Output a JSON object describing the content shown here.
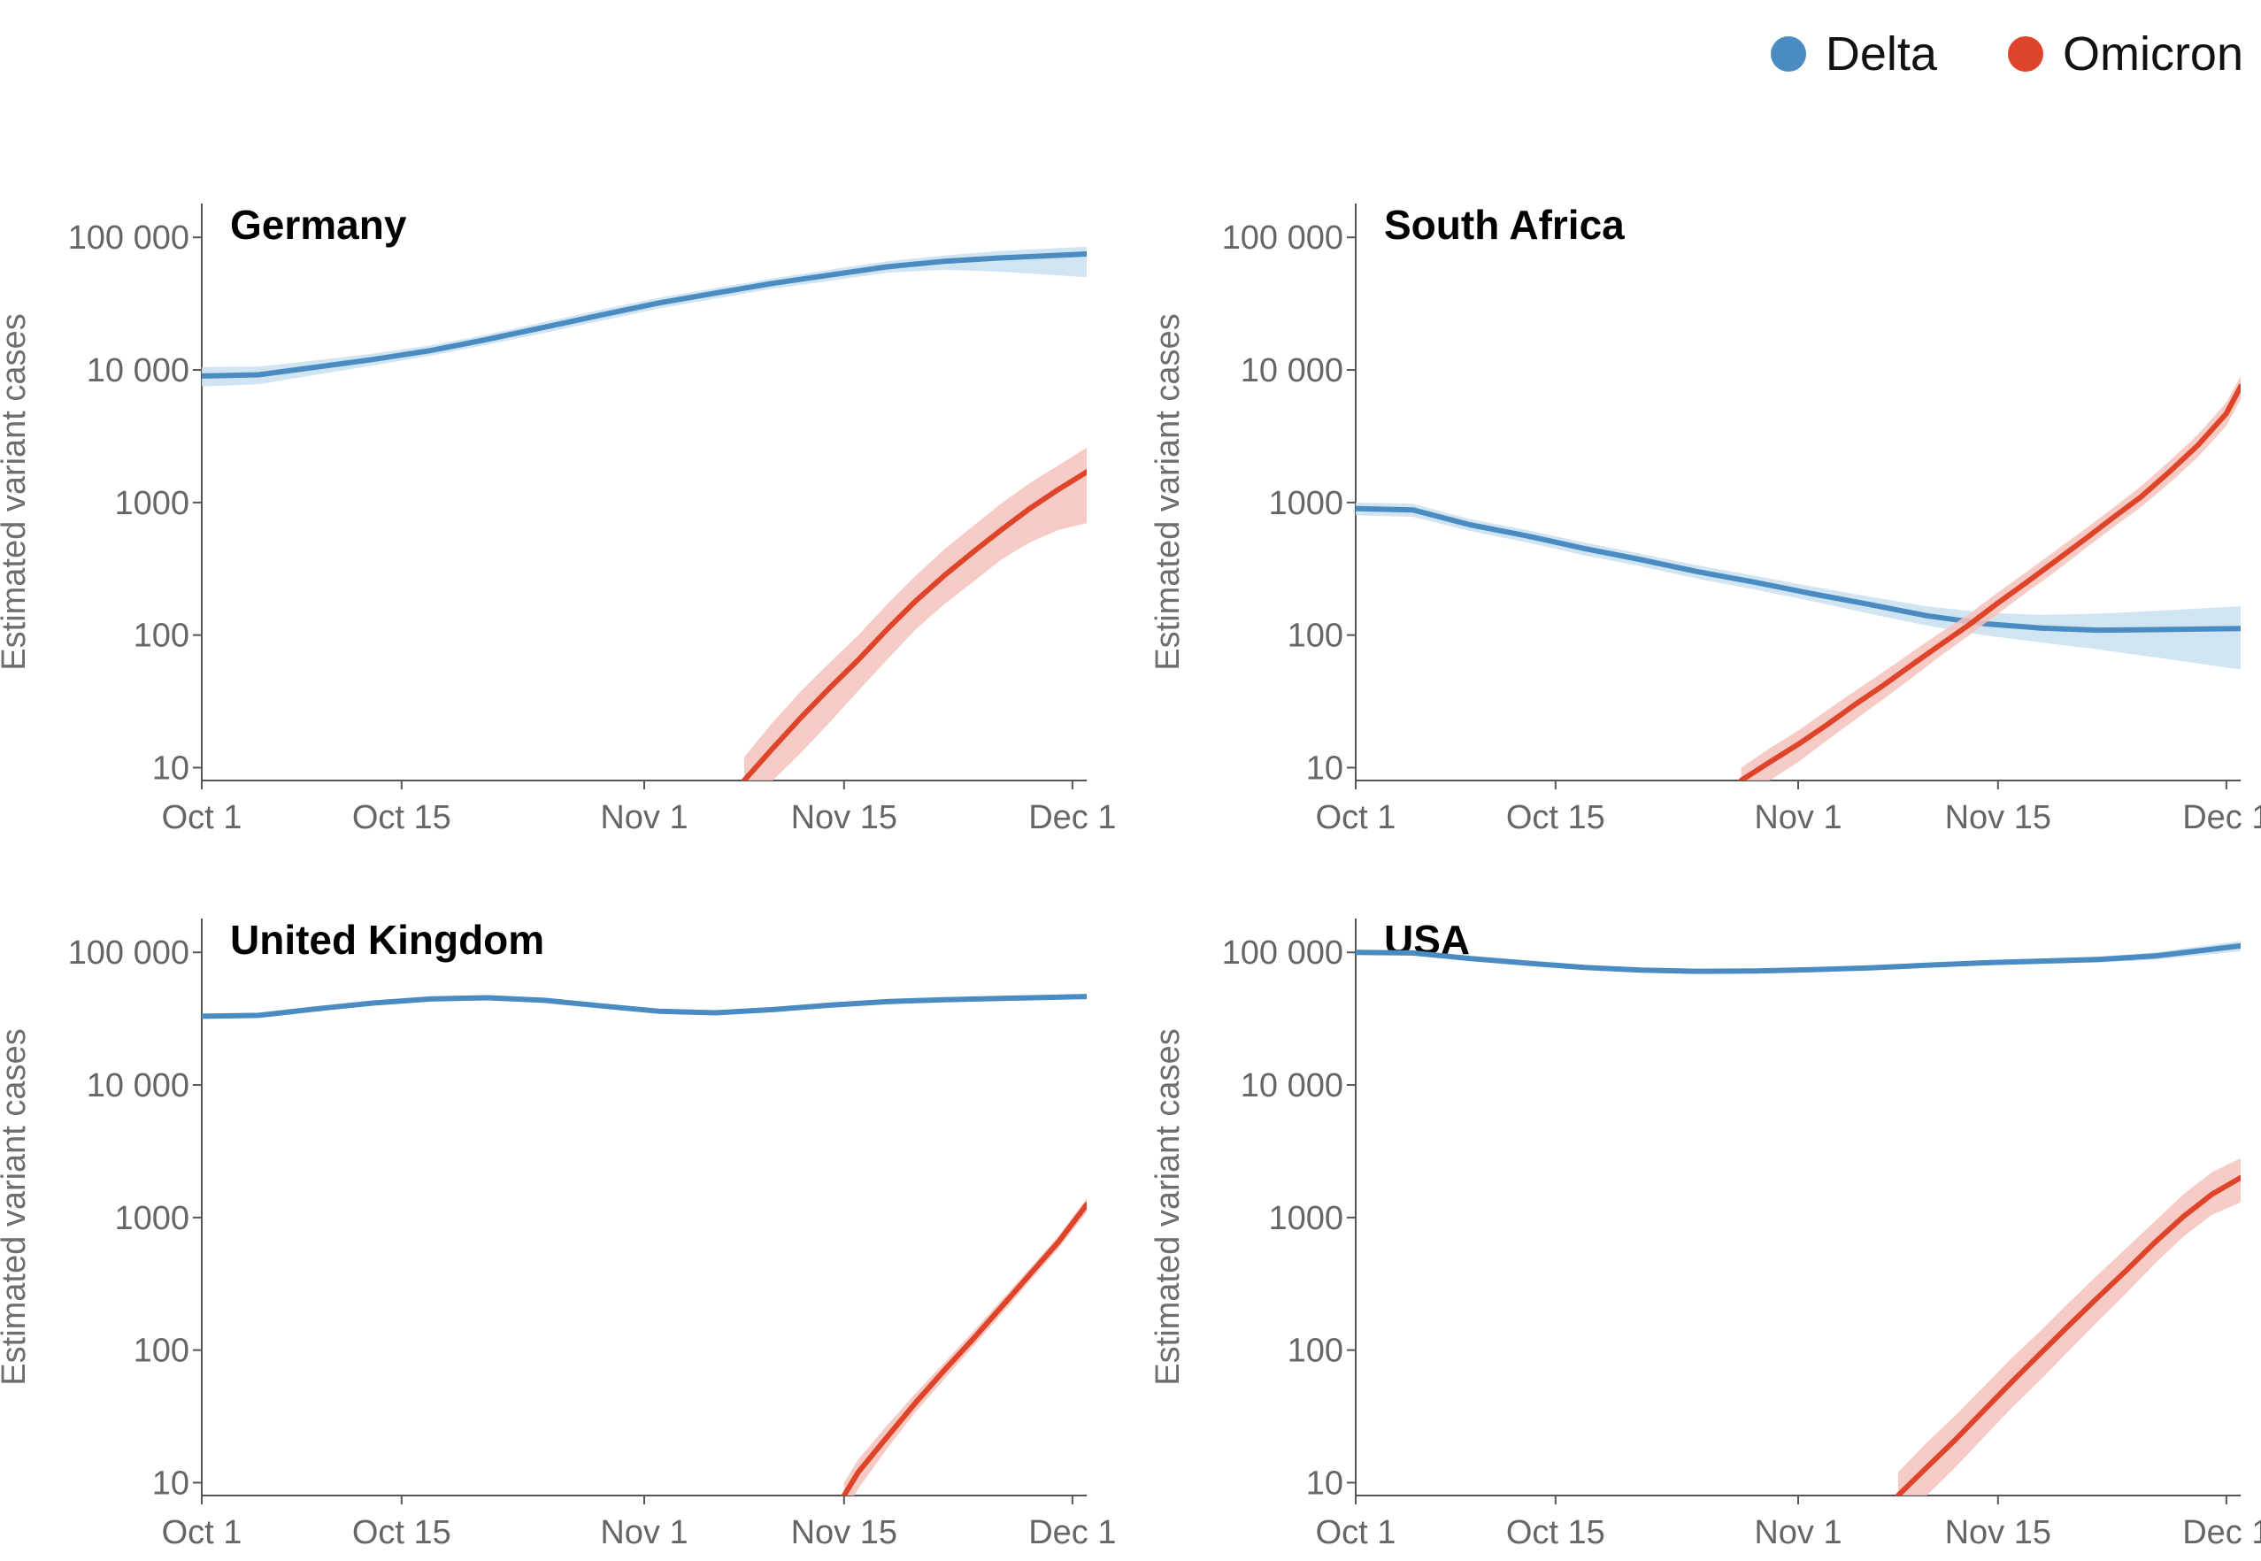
{
  "legend": {
    "items": [
      {
        "label": "Delta",
        "color": "#4a8bc2"
      },
      {
        "label": "Omicron",
        "color": "#de4429"
      }
    ]
  },
  "colors": {
    "delta": "#4a8bc2",
    "delta_band": "#c9dff0",
    "omicron": "#de4429",
    "omicron_band": "#f6c2bb"
  },
  "chart_data": [
    {
      "type": "line",
      "title": "Germany",
      "ylabel": "Estimated variant cases",
      "scale": "log",
      "xlim": [
        0,
        62
      ],
      "ylim": [
        8,
        180000
      ],
      "x_ticks": [
        {
          "value": 0,
          "label": "Oct 1"
        },
        {
          "value": 14,
          "label": "Oct 15"
        },
        {
          "value": 31,
          "label": "Nov 1"
        },
        {
          "value": 45,
          "label": "Nov 15"
        },
        {
          "value": 61,
          "label": "Dec 1"
        }
      ],
      "y_ticks": [
        {
          "value": 10,
          "label": "10"
        },
        {
          "value": 100,
          "label": "100"
        },
        {
          "value": 1000,
          "label": "1000"
        },
        {
          "value": 10000,
          "label": "10 000"
        },
        {
          "value": 100000,
          "label": "100 000"
        }
      ],
      "series": [
        {
          "name": "Delta",
          "x": [
            0,
            4,
            8,
            12,
            16,
            20,
            24,
            28,
            32,
            36,
            40,
            44,
            48,
            52,
            56,
            62
          ],
          "y": [
            9000,
            9200,
            10500,
            12000,
            14000,
            17000,
            21000,
            26000,
            32000,
            38000,
            45000,
            52000,
            60000,
            66000,
            70000,
            75000
          ],
          "low": [
            7500,
            7800,
            9200,
            10800,
            12800,
            15500,
            19000,
            23500,
            29000,
            34500,
            41000,
            47000,
            54000,
            57000,
            55000,
            50000
          ],
          "high": [
            10500,
            10600,
            11800,
            13300,
            15300,
            18500,
            23000,
            28500,
            35000,
            41500,
            49000,
            57000,
            66000,
            73000,
            79000,
            85000
          ]
        },
        {
          "name": "Omicron",
          "x": [
            38,
            40,
            42,
            44,
            46,
            48,
            50,
            52,
            54,
            56,
            58,
            60,
            62
          ],
          "y": [
            8,
            14,
            24,
            40,
            65,
            110,
            180,
            280,
            420,
            620,
            900,
            1250,
            1700
          ],
          "low": [
            6,
            8,
            13,
            22,
            38,
            65,
            110,
            170,
            250,
            370,
            500,
            620,
            700
          ],
          "high": [
            12,
            22,
            38,
            62,
            100,
            170,
            280,
            440,
            660,
            980,
            1400,
            1900,
            2600
          ]
        }
      ]
    },
    {
      "type": "line",
      "title": "South Africa",
      "ylabel": "Estimated variant cases",
      "scale": "log",
      "xlim": [
        0,
        62
      ],
      "ylim": [
        8,
        180000
      ],
      "x_ticks": [
        {
          "value": 0,
          "label": "Oct 1"
        },
        {
          "value": 14,
          "label": "Oct 15"
        },
        {
          "value": 31,
          "label": "Nov 1"
        },
        {
          "value": 45,
          "label": "Nov 15"
        },
        {
          "value": 61,
          "label": "Dec 1"
        }
      ],
      "y_ticks": [
        {
          "value": 10,
          "label": "10"
        },
        {
          "value": 100,
          "label": "100"
        },
        {
          "value": 1000,
          "label": "1000"
        },
        {
          "value": 10000,
          "label": "10 000"
        },
        {
          "value": 100000,
          "label": "100 000"
        }
      ],
      "series": [
        {
          "name": "Delta",
          "x": [
            0,
            4,
            8,
            12,
            16,
            20,
            24,
            28,
            32,
            36,
            40,
            44,
            48,
            52,
            56,
            62
          ],
          "y": [
            900,
            880,
            680,
            560,
            450,
            370,
            300,
            250,
            205,
            170,
            140,
            122,
            113,
            109,
            110,
            112
          ],
          "low": [
            800,
            780,
            610,
            500,
            400,
            330,
            265,
            220,
            180,
            145,
            118,
            100,
            88,
            78,
            68,
            55
          ],
          "high": [
            1000,
            980,
            750,
            620,
            500,
            410,
            335,
            280,
            232,
            195,
            165,
            148,
            142,
            145,
            152,
            165
          ]
        },
        {
          "name": "Omicron",
          "x": [
            27,
            29,
            31,
            33,
            35,
            37,
            39,
            41,
            43,
            45,
            47,
            49,
            51,
            53,
            55,
            57,
            59,
            61,
            62
          ],
          "y": [
            8,
            11,
            15,
            21,
            30,
            42,
            60,
            85,
            120,
            175,
            250,
            360,
            520,
            760,
            1100,
            1700,
            2700,
            4700,
            7500
          ],
          "low": [
            6,
            8,
            11,
            16,
            23,
            33,
            48,
            70,
            100,
            145,
            210,
            300,
            440,
            640,
            920,
            1400,
            2200,
            3800,
            6000
          ],
          "high": [
            10,
            14,
            19,
            27,
            38,
            53,
            75,
            105,
            145,
            210,
            300,
            430,
            620,
            900,
            1320,
            2050,
            3250,
            5700,
            9000
          ]
        }
      ]
    },
    {
      "type": "line",
      "title": "United Kingdom",
      "ylabel": "Estimated variant cases",
      "scale": "log",
      "xlim": [
        0,
        62
      ],
      "ylim": [
        8,
        180000
      ],
      "x_ticks": [
        {
          "value": 0,
          "label": "Oct 1"
        },
        {
          "value": 14,
          "label": "Oct 15"
        },
        {
          "value": 31,
          "label": "Nov 1"
        },
        {
          "value": 45,
          "label": "Nov 15"
        },
        {
          "value": 61,
          "label": "Dec 1"
        }
      ],
      "y_ticks": [
        {
          "value": 10,
          "label": "10"
        },
        {
          "value": 100,
          "label": "100"
        },
        {
          "value": 1000,
          "label": "1000"
        },
        {
          "value": 10000,
          "label": "10 000"
        },
        {
          "value": 100000,
          "label": "100 000"
        }
      ],
      "series": [
        {
          "name": "Delta",
          "x": [
            0,
            4,
            8,
            12,
            16,
            20,
            24,
            28,
            32,
            36,
            40,
            44,
            48,
            52,
            56,
            62
          ],
          "y": [
            33000,
            33500,
            37500,
            41500,
            44500,
            45500,
            43500,
            39500,
            36000,
            35000,
            37000,
            40000,
            42500,
            44000,
            45000,
            46500
          ],
          "low": [
            32000,
            32500,
            36500,
            40500,
            43500,
            44500,
            42500,
            38500,
            35000,
            34000,
            36000,
            39000,
            41500,
            43000,
            44000,
            45000
          ],
          "high": [
            34000,
            34500,
            38500,
            42500,
            45500,
            46500,
            44500,
            40500,
            37000,
            36000,
            38000,
            41000,
            43500,
            45000,
            46000,
            48000
          ]
        },
        {
          "name": "Omicron",
          "x": [
            45,
            46,
            48,
            50,
            52,
            54,
            56,
            58,
            60,
            62
          ],
          "y": [
            8,
            12,
            22,
            40,
            70,
            120,
            210,
            370,
            650,
            1250
          ],
          "low": [
            6,
            9,
            18,
            34,
            60,
            105,
            185,
            330,
            580,
            1100
          ],
          "high": [
            10,
            15,
            27,
            47,
            80,
            137,
            237,
            412,
            720,
            1400
          ]
        }
      ]
    },
    {
      "type": "line",
      "title": "USA",
      "ylabel": "Estimated variant cases",
      "scale": "log",
      "xlim": [
        0,
        62
      ],
      "ylim": [
        8,
        180000
      ],
      "x_ticks": [
        {
          "value": 0,
          "label": "Oct 1"
        },
        {
          "value": 14,
          "label": "Oct 15"
        },
        {
          "value": 31,
          "label": "Nov 1"
        },
        {
          "value": 45,
          "label": "Nov 15"
        },
        {
          "value": 61,
          "label": "Dec 1"
        }
      ],
      "y_ticks": [
        {
          "value": 10,
          "label": "10"
        },
        {
          "value": 100,
          "label": "100"
        },
        {
          "value": 1000,
          "label": "1000"
        },
        {
          "value": 10000,
          "label": "10 000"
        },
        {
          "value": 100000,
          "label": "100 000"
        }
      ],
      "series": [
        {
          "name": "Delta",
          "x": [
            0,
            4,
            8,
            12,
            16,
            20,
            24,
            28,
            32,
            36,
            40,
            44,
            48,
            52,
            56,
            62
          ],
          "y": [
            100000,
            99000,
            90000,
            83000,
            77000,
            73500,
            72000,
            72500,
            74000,
            76500,
            80000,
            83500,
            86000,
            88500,
            94000,
            112000
          ],
          "low": [
            96000,
            95000,
            86500,
            79500,
            74000,
            70500,
            69000,
            69500,
            71000,
            73500,
            77000,
            80000,
            82000,
            84000,
            88000,
            102000
          ],
          "high": [
            104000,
            103000,
            93500,
            86500,
            80000,
            76500,
            75000,
            75500,
            77000,
            79500,
            83000,
            87000,
            90000,
            93000,
            100000,
            122000
          ]
        },
        {
          "name": "Omicron",
          "x": [
            38,
            40,
            42,
            44,
            46,
            48,
            50,
            52,
            54,
            56,
            58,
            60,
            62
          ],
          "y": [
            8,
            13,
            21,
            35,
            58,
            95,
            155,
            250,
            400,
            650,
            1020,
            1500,
            2000
          ],
          "low": [
            5,
            8,
            13,
            22,
            37,
            60,
            100,
            165,
            270,
            450,
            720,
            1050,
            1300
          ],
          "high": [
            12,
            20,
            32,
            53,
            88,
            140,
            230,
            370,
            590,
            940,
            1500,
            2200,
            2800
          ]
        }
      ]
    }
  ]
}
